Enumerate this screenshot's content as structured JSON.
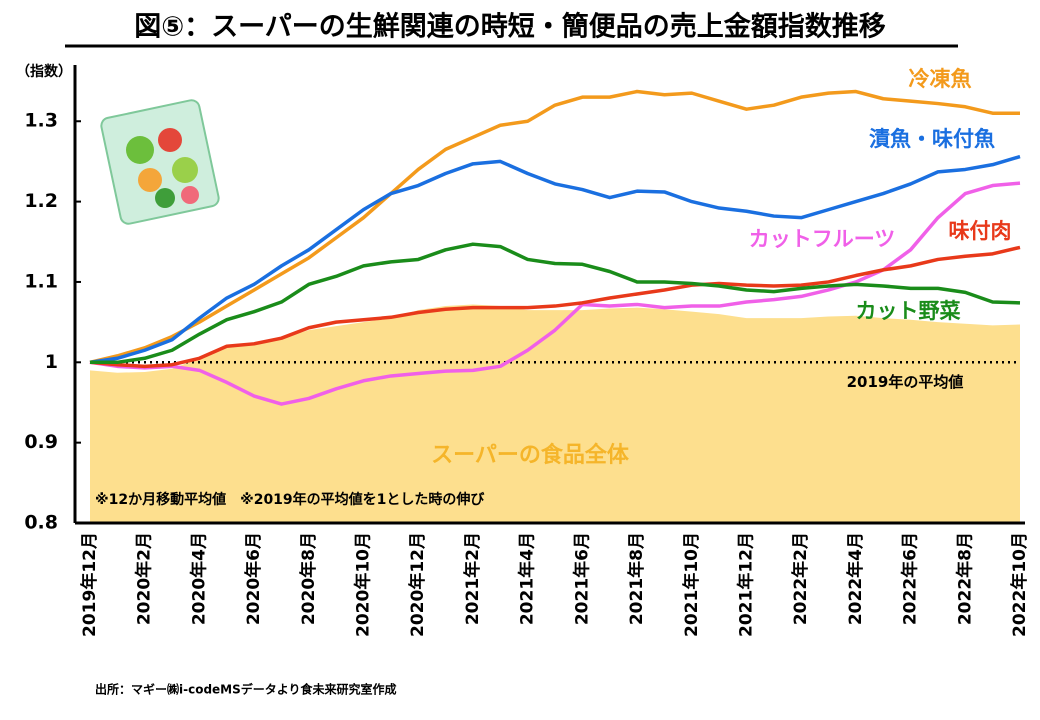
{
  "chart_data": {
    "type": "line",
    "title": "図⑤：スーパーの生鮮関連の時短・簡便品の売上金額指数推移",
    "y_label": "（指数）",
    "categories": [
      "2019年12月",
      null,
      "2020年2月",
      null,
      "2020年4月",
      null,
      "2020年6月",
      null,
      "2020年8月",
      null,
      "2020年10月",
      null,
      "2020年12月",
      null,
      "2021年2月",
      null,
      "2021年4月",
      null,
      "2021年6月",
      null,
      "2021年8月",
      null,
      "2021年10月",
      null,
      "2021年12月",
      null,
      "2022年2月",
      null,
      "2022年4月",
      null,
      "2022年6月",
      null,
      "2022年8月",
      null,
      "2022年10月"
    ],
    "ylim": [
      0.8,
      1.37
    ],
    "yticks": [
      0.8,
      0.9,
      1,
      1.1,
      1.2,
      1.3
    ],
    "reference_line": {
      "value": 1,
      "label": "2019年の平均値"
    },
    "area": {
      "name": "スーパーの食品全体",
      "color": "#fddf8e",
      "label_color": "#f5b52a",
      "values": [
        0.99,
        0.987,
        0.988,
        0.992,
        1.005,
        1.018,
        1.025,
        1.03,
        1.04,
        1.045,
        1.05,
        1.055,
        1.065,
        1.07,
        1.072,
        1.07,
        1.065,
        1.065,
        1.065,
        1.067,
        1.068,
        1.066,
        1.063,
        1.06,
        1.055,
        1.055,
        1.055,
        1.057,
        1.058,
        1.055,
        1.053,
        1.05,
        1.048,
        1.046,
        1.047
      ]
    },
    "series": [
      {
        "name": "冷凍魚",
        "color": "#f39a1c",
        "values": [
          1.0,
          1.008,
          1.018,
          1.032,
          1.05,
          1.07,
          1.09,
          1.11,
          1.13,
          1.155,
          1.18,
          1.21,
          1.24,
          1.265,
          1.28,
          1.295,
          1.3,
          1.32,
          1.33,
          1.33,
          1.337,
          1.333,
          1.335,
          1.325,
          1.315,
          1.32,
          1.33,
          1.335,
          1.337,
          1.328,
          1.325,
          1.322,
          1.318,
          1.31,
          1.31
        ]
      },
      {
        "name": "漬魚・味付魚",
        "color": "#1a6fe0",
        "values": [
          1.0,
          1.005,
          1.015,
          1.028,
          1.055,
          1.08,
          1.097,
          1.12,
          1.14,
          1.165,
          1.19,
          1.21,
          1.22,
          1.235,
          1.247,
          1.25,
          1.235,
          1.222,
          1.215,
          1.205,
          1.213,
          1.212,
          1.2,
          1.192,
          1.188,
          1.182,
          1.18,
          1.19,
          1.2,
          1.21,
          1.222,
          1.237,
          1.24,
          1.246,
          1.256
        ]
      },
      {
        "name": "カットフルーツ",
        "color": "#f060e8",
        "values": [
          1.0,
          0.995,
          0.993,
          0.995,
          0.99,
          0.975,
          0.958,
          0.948,
          0.955,
          0.967,
          0.977,
          0.983,
          0.986,
          0.989,
          0.99,
          0.995,
          1.015,
          1.04,
          1.072,
          1.07,
          1.072,
          1.068,
          1.07,
          1.07,
          1.075,
          1.078,
          1.082,
          1.09,
          1.1,
          1.115,
          1.14,
          1.18,
          1.21,
          1.22,
          1.223
        ]
      },
      {
        "name": "味付肉",
        "color": "#e8391a",
        "values": [
          1.0,
          0.997,
          0.995,
          0.997,
          1.005,
          1.02,
          1.023,
          1.03,
          1.043,
          1.05,
          1.053,
          1.056,
          1.062,
          1.066,
          1.068,
          1.068,
          1.068,
          1.07,
          1.074,
          1.08,
          1.085,
          1.09,
          1.096,
          1.098,
          1.096,
          1.095,
          1.096,
          1.1,
          1.108,
          1.115,
          1.12,
          1.128,
          1.132,
          1.135,
          1.143
        ]
      },
      {
        "name": "カット野菜",
        "color": "#1a8c1a",
        "values": [
          1.0,
          1.0,
          1.005,
          1.015,
          1.035,
          1.053,
          1.063,
          1.075,
          1.097,
          1.107,
          1.12,
          1.125,
          1.128,
          1.14,
          1.147,
          1.144,
          1.128,
          1.123,
          1.122,
          1.113,
          1.1,
          1.1,
          1.098,
          1.095,
          1.09,
          1.088,
          1.092,
          1.095,
          1.097,
          1.095,
          1.092,
          1.092,
          1.087,
          1.075,
          1.074
        ]
      }
    ],
    "notes": "※12か月移動平均値　※2019年の平均値を1とした時の伸び",
    "source": "出所：マギー㈱i-codeMSデータより食未来研究室作成"
  }
}
